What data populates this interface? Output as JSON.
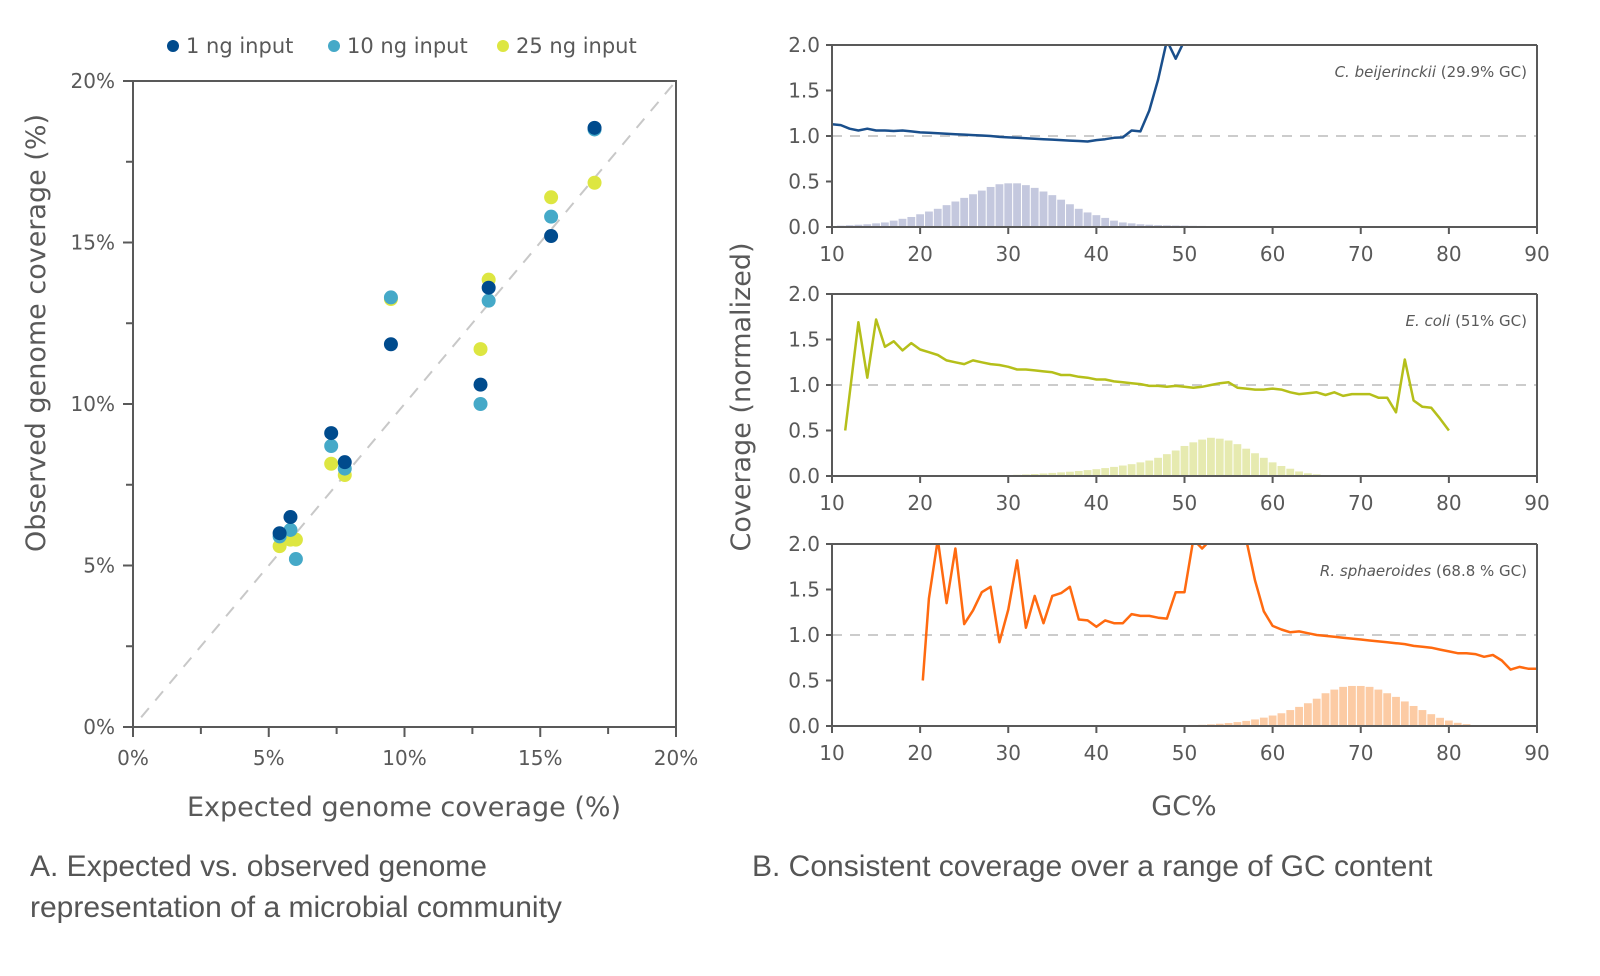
{
  "captions": {
    "a_line1": "A. Expected vs. observed genome",
    "a_line2": "representation of a microbial community",
    "b": "B. Consistent coverage over a range of GC content"
  },
  "chart_data": [
    {
      "type": "scatter",
      "panel": "A",
      "xlabel": "Expected genome coverage (%)",
      "ylabel": "Observed genome coverage (%)",
      "xlim": [
        0,
        20
      ],
      "ylim": [
        0,
        20
      ],
      "xticks": [
        "0%",
        "5%",
        "10%",
        "15%",
        "20%"
      ],
      "yticks": [
        "0%",
        "5%",
        "10%",
        "15%",
        "20%"
      ],
      "reference_line": "y = x (dashed)",
      "legend_position": "top",
      "series": [
        {
          "name": "1 ng input",
          "color": "#004b8d",
          "points": [
            [
              5.4,
              6.0
            ],
            [
              5.8,
              6.5
            ],
            [
              7.3,
              9.1
            ],
            [
              7.8,
              8.2
            ],
            [
              9.5,
              11.85
            ],
            [
              12.8,
              10.6
            ],
            [
              13.1,
              13.6
            ],
            [
              15.4,
              15.2
            ],
            [
              17.0,
              18.55
            ]
          ]
        },
        {
          "name": "10 ng input",
          "color": "#45a9c8",
          "points": [
            [
              5.4,
              5.9
            ],
            [
              5.8,
              6.1
            ],
            [
              6.0,
              5.2
            ],
            [
              7.3,
              8.7
            ],
            [
              7.8,
              8.0
            ],
            [
              9.5,
              13.3
            ],
            [
              12.8,
              10.0
            ],
            [
              13.1,
              13.2
            ],
            [
              15.4,
              15.8
            ],
            [
              17.0,
              18.5
            ]
          ]
        },
        {
          "name": "25 ng input",
          "color": "#dde641",
          "points": [
            [
              5.4,
              5.6
            ],
            [
              5.8,
              5.8
            ],
            [
              6.0,
              5.8
            ],
            [
              7.3,
              8.15
            ],
            [
              7.8,
              7.8
            ],
            [
              9.5,
              13.25
            ],
            [
              12.8,
              11.7
            ],
            [
              13.1,
              13.85
            ],
            [
              15.4,
              16.4
            ],
            [
              17.0,
              16.85
            ]
          ]
        }
      ]
    },
    {
      "type": "line",
      "panel": "B",
      "xlabel": "GC%",
      "ylabel": "Coverage (normalized)",
      "xlim": [
        10,
        90
      ],
      "ylim": [
        0,
        2.0
      ],
      "xticks": [
        "10",
        "20",
        "30",
        "40",
        "50",
        "60",
        "70",
        "80",
        "90"
      ],
      "yticks": [
        "0.0",
        "0.5",
        "1.0",
        "1.5",
        "2.0"
      ],
      "reference_line": 1.0,
      "subplots": [
        {
          "species": "C. beijerinckii",
          "species_note": " (29.9% GC)",
          "line_color": "#1a4f8c",
          "hist_color": "#c4c8de",
          "line": {
            "x": [
              10,
              11,
              12,
              13,
              14,
              15,
              16,
              17,
              18,
              19,
              20,
              21,
              22,
              23,
              24,
              25,
              26,
              27,
              28,
              29,
              30,
              31,
              32,
              33,
              34,
              35,
              36,
              37,
              38,
              39,
              40,
              41,
              42,
              43,
              44,
              45,
              46,
              47,
              48,
              49,
              50
            ],
            "y": [
              1.13,
              1.12,
              1.08,
              1.06,
              1.08,
              1.06,
              1.06,
              1.055,
              1.06,
              1.05,
              1.04,
              1.035,
              1.03,
              1.025,
              1.02,
              1.015,
              1.01,
              1.005,
              1.0,
              0.99,
              0.985,
              0.98,
              0.975,
              0.97,
              0.965,
              0.96,
              0.955,
              0.95,
              0.945,
              0.94,
              0.955,
              0.965,
              0.98,
              0.985,
              1.06,
              1.05,
              1.28,
              1.62,
              2.05,
              1.85,
              2.05
            ]
          },
          "histogram": {
            "x": [
              10,
              11,
              12,
              13,
              14,
              15,
              16,
              17,
              18,
              19,
              20,
              21,
              22,
              23,
              24,
              25,
              26,
              27,
              28,
              29,
              30,
              31,
              32,
              33,
              34,
              35,
              36,
              37,
              38,
              39,
              40,
              41,
              42,
              43,
              44,
              45,
              46,
              47,
              48,
              49,
              50,
              51,
              52,
              53,
              54,
              55,
              56,
              57,
              58,
              59,
              60,
              61
            ],
            "y": [
              0.01,
              0.015,
              0.02,
              0.025,
              0.03,
              0.04,
              0.05,
              0.07,
              0.09,
              0.11,
              0.14,
              0.17,
              0.2,
              0.24,
              0.28,
              0.32,
              0.36,
              0.4,
              0.44,
              0.47,
              0.48,
              0.48,
              0.46,
              0.43,
              0.39,
              0.35,
              0.3,
              0.25,
              0.2,
              0.16,
              0.13,
              0.1,
              0.07,
              0.05,
              0.04,
              0.03,
              0.025,
              0.02,
              0.018,
              0.016,
              0.015,
              0.013,
              0.012,
              0.011,
              0.01,
              0.009,
              0.008,
              0.007,
              0.006,
              0.005,
              0.004,
              0.003
            ]
          }
        },
        {
          "species": "E. coli",
          "species_note": " (51% GC)",
          "line_color": "#b5bf1a",
          "hist_color": "#e6eab0",
          "line": {
            "x": [
              11.5,
              13,
              14,
              15,
              16,
              17,
              18,
              19,
              20,
              21,
              22,
              23,
              24,
              25,
              26,
              27,
              28,
              29,
              30,
              31,
              32,
              33,
              34,
              35,
              36,
              37,
              38,
              39,
              40,
              41,
              42,
              43,
              44,
              45,
              46,
              47,
              48,
              49,
              50,
              51,
              52,
              53,
              54,
              55,
              56,
              57,
              58,
              59,
              60,
              61,
              62,
              63,
              64,
              65,
              66,
              67,
              68,
              69,
              70,
              71,
              72,
              73,
              74,
              75,
              76,
              77,
              78,
              79,
              80
            ],
            "y": [
              0.5,
              1.69,
              1.08,
              1.72,
              1.42,
              1.48,
              1.38,
              1.46,
              1.39,
              1.36,
              1.33,
              1.27,
              1.25,
              1.23,
              1.27,
              1.25,
              1.23,
              1.22,
              1.2,
              1.17,
              1.17,
              1.16,
              1.15,
              1.14,
              1.11,
              1.11,
              1.09,
              1.08,
              1.06,
              1.06,
              1.04,
              1.03,
              1.02,
              1.01,
              0.99,
              0.99,
              0.98,
              0.99,
              0.98,
              0.97,
              0.98,
              1.0,
              1.02,
              1.03,
              0.97,
              0.96,
              0.95,
              0.95,
              0.96,
              0.95,
              0.92,
              0.9,
              0.91,
              0.92,
              0.89,
              0.92,
              0.88,
              0.9,
              0.9,
              0.9,
              0.86,
              0.86,
              0.7,
              1.28,
              0.83,
              0.76,
              0.75,
              0.63,
              0.5
            ]
          },
          "histogram": {
            "x": [
              28,
              29,
              30,
              31,
              32,
              33,
              34,
              35,
              36,
              37,
              38,
              39,
              40,
              41,
              42,
              43,
              44,
              45,
              46,
              47,
              48,
              49,
              50,
              51,
              52,
              53,
              54,
              55,
              56,
              57,
              58,
              59,
              60,
              61,
              62,
              63,
              64,
              65,
              66,
              67
            ],
            "y": [
              0.005,
              0.008,
              0.01,
              0.013,
              0.017,
              0.022,
              0.028,
              0.034,
              0.04,
              0.047,
              0.055,
              0.065,
              0.075,
              0.087,
              0.1,
              0.115,
              0.13,
              0.15,
              0.17,
              0.2,
              0.24,
              0.28,
              0.33,
              0.37,
              0.4,
              0.42,
              0.41,
              0.39,
              0.35,
              0.3,
              0.25,
              0.2,
              0.15,
              0.11,
              0.08,
              0.05,
              0.03,
              0.018,
              0.01,
              0.005
            ]
          }
        },
        {
          "species": "R. sphaeroides",
          "species_note": " (68.8 % GC)",
          "line_color": "#ff6a10",
          "hist_color": "#fccba4",
          "line": {
            "x": [
              20.3,
              21,
              22,
              23,
              24,
              25,
              26,
              27,
              28,
              29,
              30,
              31,
              32,
              33,
              34,
              35,
              36,
              37,
              38,
              39,
              40,
              41,
              42,
              43,
              44,
              45,
              46,
              47,
              48,
              49,
              50,
              51,
              52,
              53,
              54,
              55,
              56,
              57,
              58,
              59,
              60,
              61,
              62,
              63,
              64,
              65,
              66,
              67,
              68,
              69,
              70,
              71,
              72,
              73,
              74,
              75,
              76,
              77,
              78,
              79,
              80,
              81,
              82,
              83,
              84,
              85,
              86,
              87,
              88,
              89,
              90
            ],
            "y": [
              0.5,
              1.4,
              2.05,
              1.35,
              1.95,
              1.12,
              1.27,
              1.47,
              1.53,
              0.92,
              1.28,
              1.82,
              1.08,
              1.43,
              1.13,
              1.43,
              1.46,
              1.53,
              1.17,
              1.16,
              1.09,
              1.16,
              1.13,
              1.13,
              1.23,
              1.21,
              1.21,
              1.19,
              1.18,
              1.47,
              1.47,
              2.05,
              1.95,
              2.05,
              2.05,
              2.05,
              2.05,
              2.05,
              1.6,
              1.26,
              1.1,
              1.06,
              1.03,
              1.04,
              1.02,
              1.0,
              0.99,
              0.98,
              0.97,
              0.96,
              0.95,
              0.94,
              0.93,
              0.92,
              0.91,
              0.9,
              0.88,
              0.87,
              0.86,
              0.84,
              0.82,
              0.8,
              0.8,
              0.79,
              0.76,
              0.78,
              0.72,
              0.62,
              0.65,
              0.63,
              0.63
            ]
          },
          "histogram": {
            "x": [
              49,
              50,
              51,
              52,
              53,
              54,
              55,
              56,
              57,
              58,
              59,
              60,
              61,
              62,
              63,
              64,
              65,
              66,
              67,
              68,
              69,
              70,
              71,
              72,
              73,
              74,
              75,
              76,
              77,
              78,
              79,
              80,
              81,
              82,
              83,
              84
            ],
            "y": [
              0.004,
              0.006,
              0.009,
              0.013,
              0.018,
              0.025,
              0.033,
              0.043,
              0.056,
              0.072,
              0.092,
              0.115,
              0.14,
              0.175,
              0.21,
              0.25,
              0.3,
              0.36,
              0.4,
              0.43,
              0.44,
              0.44,
              0.43,
              0.4,
              0.36,
              0.32,
              0.27,
              0.22,
              0.175,
              0.13,
              0.09,
              0.06,
              0.035,
              0.02,
              0.01,
              0.005
            ]
          }
        }
      ]
    }
  ]
}
